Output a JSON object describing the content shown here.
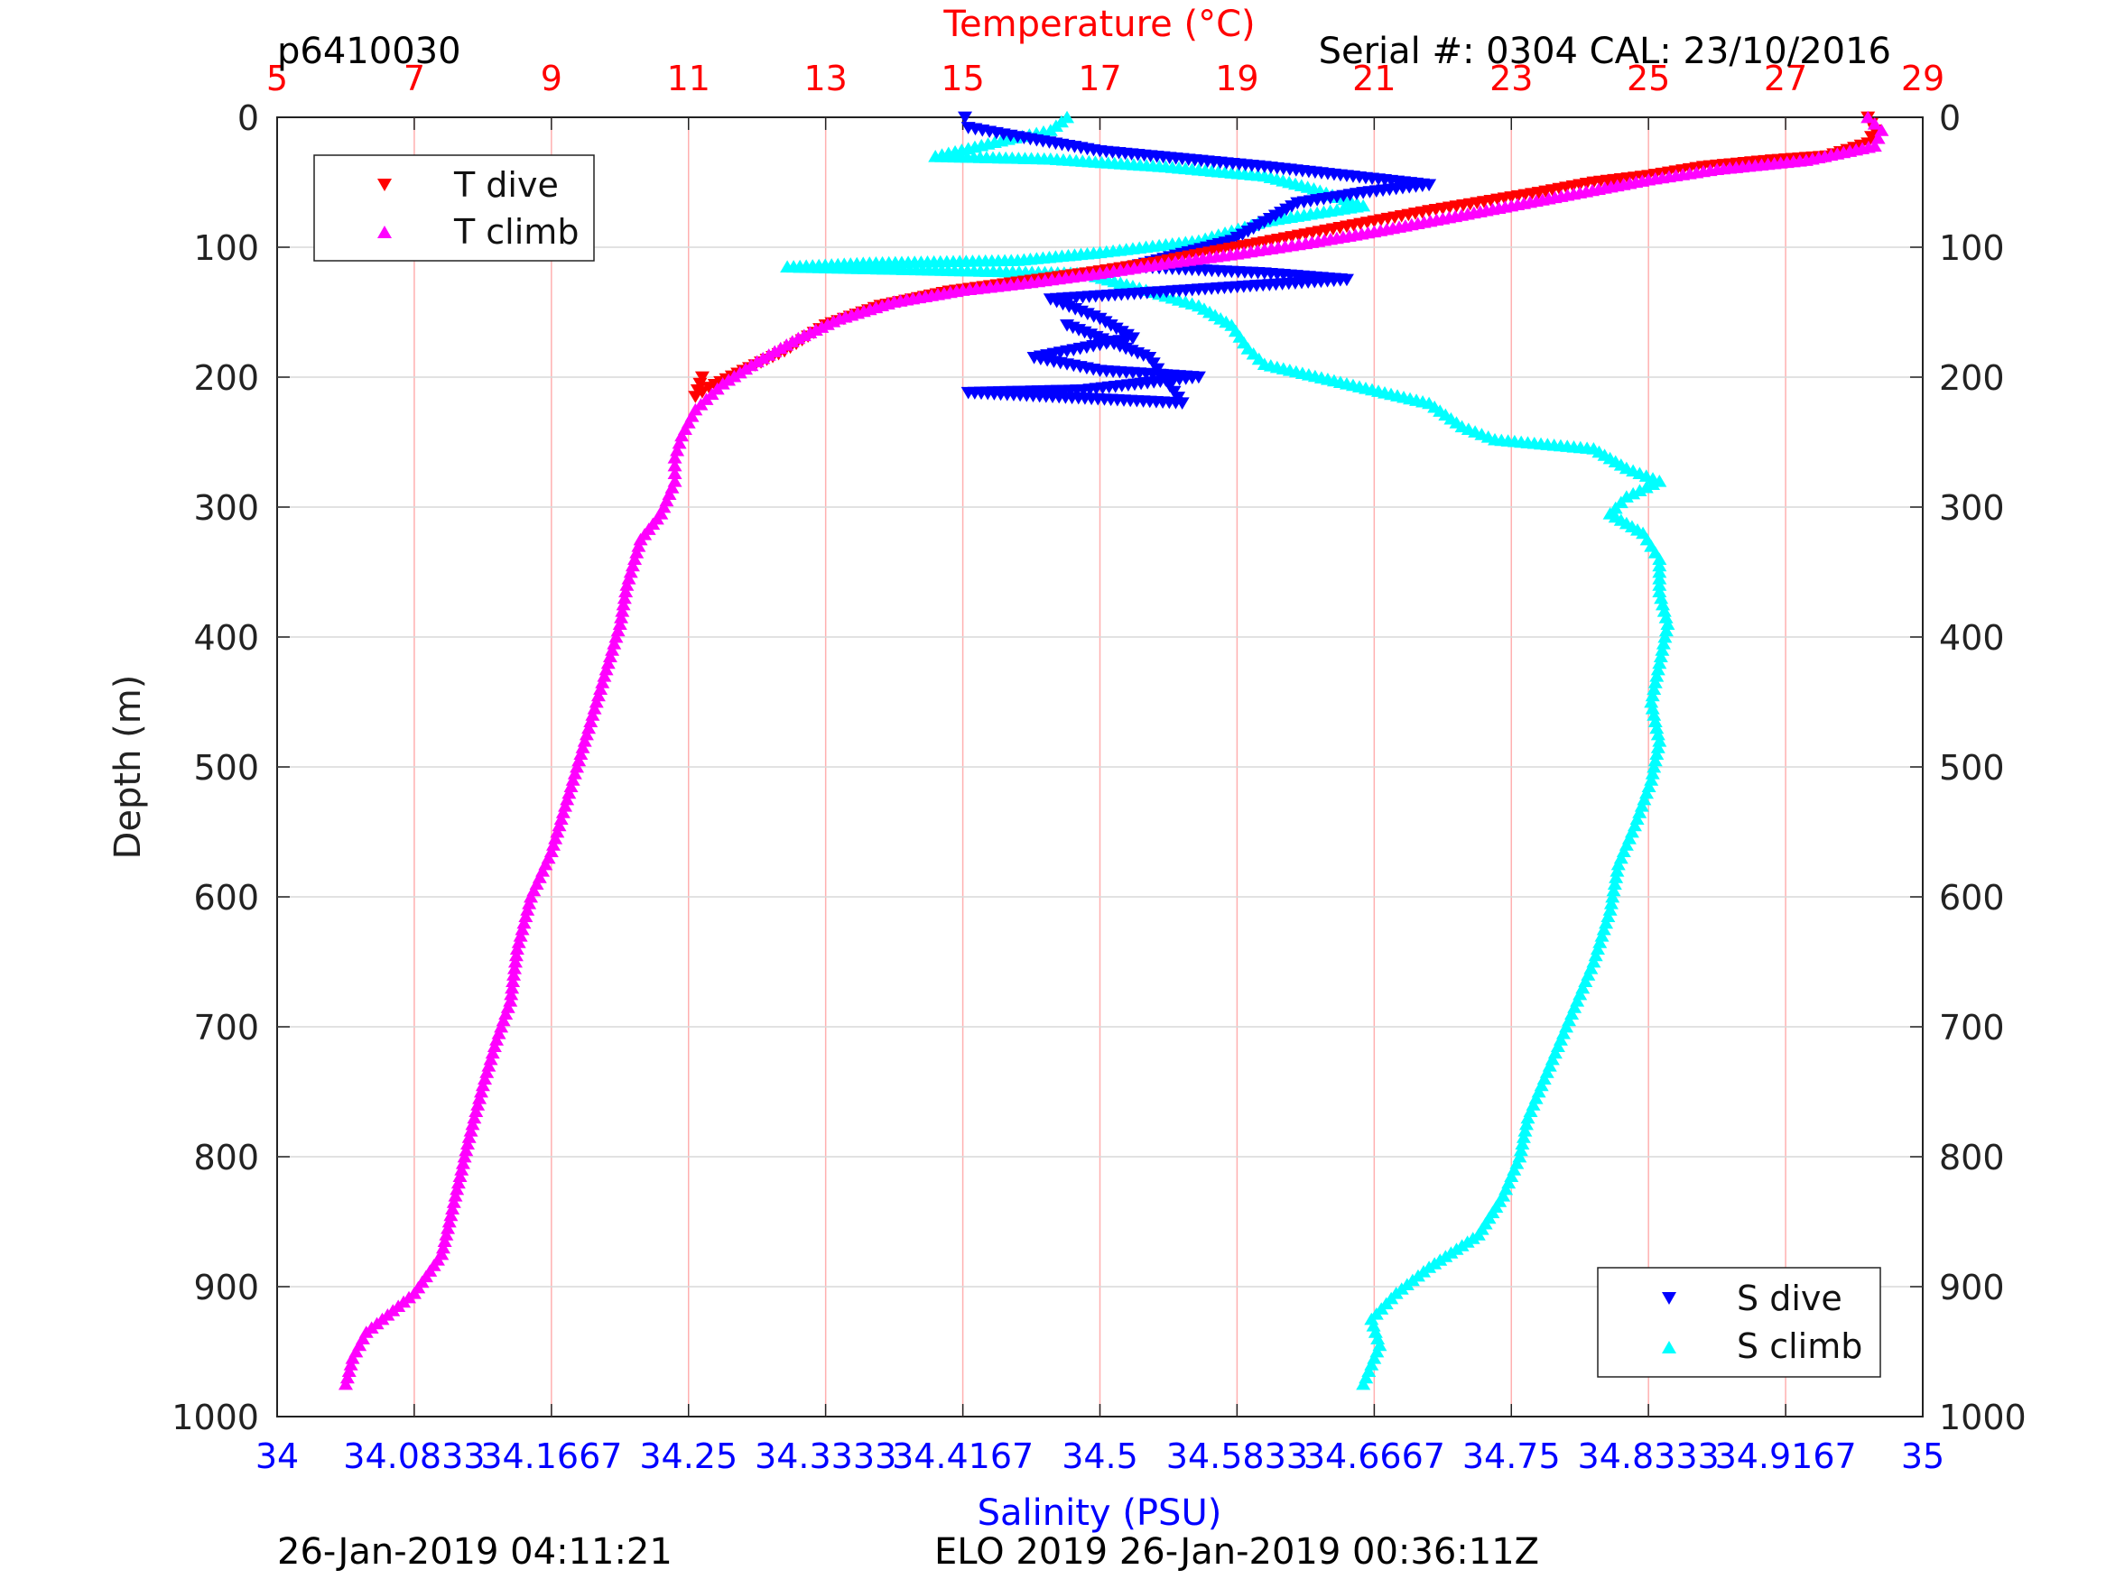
{
  "header": {
    "left_label": "p6410030",
    "right_label": "Serial #: 0304  CAL: 23/10/2016"
  },
  "footer": {
    "left_timestamp": "26-Jan-2019 04:11:21",
    "right_timestamp": "ELO 2019 26-Jan-2019 00:36:11Z"
  },
  "colors": {
    "temperature_axis": "#ff0000",
    "salinity_axis": "#0000ff",
    "t_dive": "#ff0000",
    "t_climb": "#ff00ff",
    "s_dive": "#0000ff",
    "s_climb": "#00ffff",
    "grid": "#ffb0b0",
    "grid_depth": "#d9d9d9"
  },
  "chart_data": {
    "type": "scatter",
    "title": "",
    "ylabel": "Depth (m)",
    "ylim": [
      0,
      1000
    ],
    "y_reversed": true,
    "y_ticks": [
      "0",
      "100",
      "200",
      "300",
      "400",
      "500",
      "600",
      "700",
      "800",
      "900",
      "1000"
    ],
    "y_tick_values": [
      0,
      100,
      200,
      300,
      400,
      500,
      600,
      700,
      800,
      900,
      1000
    ],
    "top_axis": {
      "label": "Temperature (°C)",
      "range": [
        5,
        29
      ],
      "ticks": [
        "5",
        "7",
        "9",
        "11",
        "13",
        "15",
        "17",
        "19",
        "21",
        "23",
        "25",
        "27",
        "29"
      ],
      "tick_values": [
        5,
        7,
        9,
        11,
        13,
        15,
        17,
        19,
        21,
        23,
        25,
        27,
        29
      ]
    },
    "bottom_axis": {
      "label": "Salinity (PSU)",
      "range": [
        34,
        35
      ],
      "ticks": [
        "34",
        "34.0833",
        "34.1667",
        "34.25",
        "34.3333",
        "34.4167",
        "34.5",
        "34.5833",
        "34.6667",
        "34.75",
        "34.8333",
        "34.9167",
        "35"
      ],
      "tick_values": [
        34,
        34.0833,
        34.1667,
        34.25,
        34.3333,
        34.4167,
        34.5,
        34.5833,
        34.6667,
        34.75,
        34.8333,
        34.9167,
        35
      ]
    },
    "grid": true,
    "legends": [
      {
        "placement": "top-left",
        "entries": [
          "T dive",
          "T climb"
        ]
      },
      {
        "placement": "bottom-right",
        "entries": [
          "S dive",
          "S climb"
        ]
      }
    ],
    "series": [
      {
        "name": "T dive",
        "axis": "temperature",
        "marker": "triangle-down",
        "points": [
          [
            28.2,
            0
          ],
          [
            28.3,
            10
          ],
          [
            28.2,
            20
          ],
          [
            27.6,
            30
          ],
          [
            26.8,
            33
          ],
          [
            25.8,
            38
          ],
          [
            25.0,
            45
          ],
          [
            24.2,
            50
          ],
          [
            23.4,
            58
          ],
          [
            22.6,
            65
          ],
          [
            21.8,
            72
          ],
          [
            21.0,
            80
          ],
          [
            20.2,
            88
          ],
          [
            19.4,
            96
          ],
          [
            18.6,
            104
          ],
          [
            17.8,
            112
          ],
          [
            16.8,
            120
          ],
          [
            15.8,
            127
          ],
          [
            14.8,
            134
          ],
          [
            13.8,
            145
          ],
          [
            13.0,
            160
          ],
          [
            12.4,
            180
          ],
          [
            11.8,
            195
          ],
          [
            11.3,
            208
          ],
          [
            11.1,
            215
          ],
          [
            11.2,
            200
          ]
        ]
      },
      {
        "name": "T climb",
        "axis": "temperature",
        "marker": "triangle-up",
        "points": [
          [
            28.2,
            0
          ],
          [
            28.4,
            10
          ],
          [
            28.3,
            22
          ],
          [
            27.3,
            33
          ],
          [
            26.0,
            40
          ],
          [
            25.0,
            48
          ],
          [
            24.0,
            58
          ],
          [
            23.0,
            68
          ],
          [
            22.0,
            78
          ],
          [
            21.0,
            88
          ],
          [
            20.0,
            97
          ],
          [
            19.0,
            105
          ],
          [
            18.0,
            112
          ],
          [
            17.0,
            120
          ],
          [
            16.0,
            127
          ],
          [
            15.0,
            133
          ],
          [
            14.0,
            142
          ],
          [
            13.2,
            155
          ],
          [
            12.6,
            170
          ],
          [
            12.0,
            188
          ],
          [
            11.5,
            205
          ],
          [
            11.1,
            225
          ],
          [
            10.9,
            245
          ],
          [
            10.8,
            262
          ],
          [
            10.8,
            280
          ],
          [
            10.6,
            305
          ],
          [
            10.3,
            325
          ],
          [
            10.1,
            360
          ],
          [
            10.0,
            390
          ],
          [
            9.8,
            425
          ],
          [
            9.6,
            460
          ],
          [
            9.4,
            495
          ],
          [
            9.2,
            530
          ],
          [
            9.0,
            565
          ],
          [
            8.7,
            600
          ],
          [
            8.5,
            640
          ],
          [
            8.4,
            680
          ],
          [
            8.2,
            710
          ],
          [
            8.0,
            745
          ],
          [
            7.8,
            785
          ],
          [
            7.6,
            830
          ],
          [
            7.4,
            875
          ],
          [
            7.0,
            905
          ],
          [
            6.3,
            935
          ],
          [
            6.1,
            955
          ],
          [
            6.0,
            975
          ]
        ]
      },
      {
        "name": "S dive",
        "axis": "salinity",
        "marker": "triangle-down",
        "points": [
          [
            34.418,
            0
          ],
          [
            34.42,
            8
          ],
          [
            34.45,
            15
          ],
          [
            34.5,
            26
          ],
          [
            34.55,
            32
          ],
          [
            34.6,
            38
          ],
          [
            34.65,
            45
          ],
          [
            34.7,
            52
          ],
          [
            34.66,
            58
          ],
          [
            34.62,
            66
          ],
          [
            34.58,
            95
          ],
          [
            34.55,
            105
          ],
          [
            34.52,
            115
          ],
          [
            34.6,
            120
          ],
          [
            34.65,
            125
          ],
          [
            34.47,
            140
          ],
          [
            34.5,
            155
          ],
          [
            34.52,
            170
          ],
          [
            34.46,
            185
          ],
          [
            34.5,
            195
          ],
          [
            34.56,
            200
          ],
          [
            34.49,
            210
          ],
          [
            34.42,
            212
          ],
          [
            34.55,
            220
          ],
          [
            34.53,
            185
          ],
          [
            34.48,
            160
          ]
        ]
      },
      {
        "name": "S climb",
        "axis": "salinity",
        "marker": "triangle-up",
        "points": [
          [
            34.48,
            0
          ],
          [
            34.47,
            10
          ],
          [
            34.44,
            18
          ],
          [
            34.4,
            30
          ],
          [
            34.47,
            32
          ],
          [
            34.54,
            38
          ],
          [
            34.6,
            45
          ],
          [
            34.63,
            55
          ],
          [
            34.66,
            68
          ],
          [
            34.6,
            80
          ],
          [
            34.56,
            95
          ],
          [
            34.5,
            104
          ],
          [
            34.45,
            110
          ],
          [
            34.36,
            112
          ],
          [
            34.31,
            115
          ],
          [
            34.49,
            120
          ],
          [
            34.52,
            130
          ],
          [
            34.56,
            145
          ],
          [
            34.58,
            160
          ],
          [
            34.59,
            178
          ],
          [
            34.6,
            190
          ],
          [
            34.65,
            205
          ],
          [
            34.7,
            220
          ],
          [
            34.72,
            238
          ],
          [
            34.74,
            248
          ],
          [
            34.8,
            255
          ],
          [
            34.82,
            270
          ],
          [
            34.84,
            280
          ],
          [
            34.82,
            292
          ],
          [
            34.81,
            305
          ],
          [
            34.83,
            320
          ],
          [
            34.84,
            340
          ],
          [
            34.84,
            365
          ],
          [
            34.845,
            390
          ],
          [
            34.84,
            420
          ],
          [
            34.835,
            450
          ],
          [
            34.84,
            480
          ],
          [
            34.835,
            510
          ],
          [
            34.825,
            545
          ],
          [
            34.815,
            575
          ],
          [
            34.81,
            610
          ],
          [
            34.8,
            650
          ],
          [
            34.79,
            680
          ],
          [
            34.78,
            710
          ],
          [
            34.77,
            740
          ],
          [
            34.76,
            770
          ],
          [
            34.755,
            800
          ],
          [
            34.745,
            830
          ],
          [
            34.73,
            860
          ],
          [
            34.7,
            885
          ],
          [
            34.68,
            905
          ],
          [
            34.665,
            925
          ],
          [
            34.67,
            945
          ],
          [
            34.665,
            960
          ],
          [
            34.66,
            975
          ]
        ]
      }
    ]
  }
}
